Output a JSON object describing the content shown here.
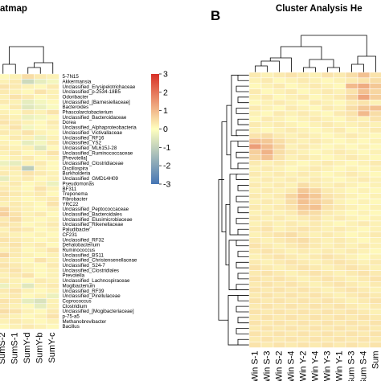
{
  "colors": {
    "high": "#d73027",
    "mid": "#ffffbf",
    "low": "#4575b4",
    "grid": "#ffffff"
  },
  "chart_data": [
    {
      "type": "heatmap",
      "panel": "",
      "title": "atmap",
      "rows": [
        "5-7N15",
        "Akkermansia",
        "Unclassified_Erysipelotrichaceae",
        "Unclassified_p-2534-18B5",
        "Odoribacter",
        "Unclassified_[Barnesiellaceae]",
        "Bacteroides",
        "Phascolarctobacterium",
        "Unclassified_Bacteroidaceae",
        "Dorea",
        "Unclassified_Alphaproteobacteria",
        "Unclassified_Victivallaceae",
        "Unclassified_RF16",
        "Unclassified_YS2",
        "Unclassified_ML615J-28",
        "Unclassified_Ruminococcaceae",
        "[Prevotella]",
        "Unclassified_Clostridiaceae",
        "Oscillospira",
        "Burkholderia",
        "Unclassified_GMD14H09",
        "Pseudomonas",
        "BF311",
        "Treponema",
        "Fibrobacter",
        "YRC22",
        "Unclassified_Peptococcaceae",
        "Unclassified_Bacteroidales",
        "Unclassified_Elusimicrobiaceae",
        "Unclassified_Rikenellaceae",
        "Paludibacter",
        "CF231",
        "Unclassified_RF32",
        "Dehalobacterium",
        "Ruminococcus",
        "Unclassified_BS11",
        "Unclassified_Christensenellaceae",
        "Unclassified_S24-7",
        "Unclassified_Clostridiales",
        "Prevotella",
        "Unclassified_Lachnospiraceae",
        "Mogibacterium",
        "Unclassified_RF39",
        "Unclassified_Pirellulaceae",
        "Coprococcus",
        "Clostridium",
        "Unclassified_[Mogibacteriaceae]",
        "p-75-a5",
        "Methanobrevibacter",
        "Bacillus"
      ],
      "columns": [
        "SumS-2",
        "SumS-1",
        "SumY-d",
        "SumY-b",
        "SumY-c"
      ],
      "values": [
        [
          0.1,
          0.2,
          0.5,
          0.3,
          0.2
        ],
        [
          0.2,
          0.3,
          -0.8,
          -0.4,
          -0.2
        ],
        [
          0.4,
          0.3,
          0.2,
          0.1,
          0.3
        ],
        [
          0.3,
          0.2,
          0.1,
          0.4,
          0.2
        ],
        [
          0.2,
          0.4,
          0.3,
          0.1,
          0.2
        ],
        [
          0.3,
          0.2,
          -0.4,
          -0.2,
          0.1
        ],
        [
          0.1,
          0.3,
          -0.5,
          -0.3,
          -0.1
        ],
        [
          0.2,
          0.1,
          0.3,
          0.2,
          0.4
        ],
        [
          0.3,
          0.2,
          -0.3,
          -0.2,
          0.1
        ],
        [
          0.4,
          0.3,
          0.2,
          0.1,
          0.3
        ],
        [
          0.2,
          0.4,
          -0.2,
          0.1,
          0.2
        ],
        [
          0.3,
          0.2,
          0.4,
          0.2,
          0.1
        ],
        [
          0.1,
          0.3,
          0.2,
          -0.3,
          0.2
        ],
        [
          0.2,
          0.1,
          -0.4,
          -0.2,
          0.3
        ],
        [
          0.3,
          0.2,
          0.2,
          -0.5,
          0.1
        ],
        [
          0.2,
          0.3,
          0.1,
          0.2,
          0.4
        ],
        [
          0.1,
          0.2,
          0.3,
          0.1,
          0.2
        ],
        [
          -0.3,
          -0.4,
          0.2,
          0.3,
          0.1
        ],
        [
          0.2,
          0.3,
          -1.1,
          0.2,
          0.1
        ],
        [
          0.3,
          0.2,
          0.4,
          0.3,
          0.2
        ],
        [
          -0.4,
          0.2,
          0.3,
          0.1,
          0.2
        ],
        [
          0.2,
          0.3,
          0.1,
          0.2,
          -0.3
        ],
        [
          0.3,
          0.2,
          0.1,
          0.4,
          0.2
        ],
        [
          0.4,
          0.3,
          0.2,
          0.3,
          0.1
        ],
        [
          0.3,
          0.2,
          0.1,
          0.2,
          0.3
        ],
        [
          0.2,
          0.3,
          0.2,
          0.1,
          0.4
        ],
        [
          0.6,
          0.3,
          0.2,
          0.1,
          0.2
        ],
        [
          0.7,
          0.4,
          0.2,
          0.3,
          0.1
        ],
        [
          0.3,
          0.5,
          0.2,
          0.1,
          0.2
        ],
        [
          0.4,
          0.3,
          0.1,
          0.2,
          0.3
        ],
        [
          0.2,
          0.4,
          0.3,
          0.1,
          0.2
        ],
        [
          0.3,
          0.2,
          0.1,
          0.2,
          0.1
        ],
        [
          0.4,
          0.3,
          0.2,
          0.1,
          0.2
        ],
        [
          0.3,
          0.4,
          0.2,
          0.3,
          0.1
        ],
        [
          0.2,
          0.3,
          0.1,
          0.2,
          0.4
        ],
        [
          0.6,
          0.3,
          0.2,
          0.1,
          0.2
        ],
        [
          0.3,
          0.2,
          0.1,
          0.4,
          0.2
        ],
        [
          0.4,
          0.3,
          0.2,
          0.1,
          0.3
        ],
        [
          0.3,
          0.4,
          0.2,
          0.1,
          0.2
        ],
        [
          0.2,
          0.3,
          0.4,
          0.1,
          0.2
        ],
        [
          0.3,
          0.2,
          0.1,
          0.3,
          0.2
        ],
        [
          -0.3,
          0.2,
          -0.5,
          0.2,
          0.3
        ],
        [
          0.3,
          0.4,
          0.2,
          0.1,
          0.2
        ],
        [
          0.2,
          0.3,
          0.1,
          0.2,
          -0.3
        ],
        [
          0.4,
          0.3,
          -0.4,
          -0.6,
          0.2
        ],
        [
          0.3,
          0.2,
          0.1,
          -0.4,
          0.2
        ],
        [
          0.5,
          0.4,
          0.2,
          0.1,
          0.3
        ],
        [
          0.3,
          0.2,
          0.1,
          0.2,
          0.4
        ],
        [
          0.2,
          0.3,
          0.2,
          0.1,
          0.2
        ],
        [
          0.1,
          0.2,
          0.3,
          0.2,
          0.1
        ]
      ],
      "legend": {
        "ticks": [
          3,
          2,
          1,
          0,
          -1,
          -2,
          -3
        ],
        "range": [
          -3,
          3
        ]
      }
    },
    {
      "type": "heatmap",
      "panel": "B",
      "title": "Cluster Analysis He",
      "columns": [
        "Win S-1",
        "Win S-3",
        "Win S-2",
        "Win S-4",
        "Win Y-2",
        "Win Y-4",
        "Win Y-3",
        "Win Y-1",
        "Sum S-3",
        "Sum S-4",
        "Sum"
      ],
      "values": [
        [
          0.3,
          0.2,
          0.3,
          0.4,
          0.3,
          0.2,
          0.4,
          0.3,
          0.5,
          0.9,
          0.4
        ],
        [
          0.2,
          0.3,
          0.1,
          0.2,
          0.3,
          0.2,
          0.1,
          0.2,
          0.3,
          0.4,
          0.5
        ],
        [
          0.1,
          0.2,
          0.3,
          0.1,
          0.2,
          0.3,
          0.2,
          0.1,
          1.0,
          1.2,
          0.8
        ],
        [
          0.3,
          0.1,
          0.2,
          0.3,
          0.1,
          0.2,
          0.3,
          0.2,
          0.4,
          0.9,
          0.6
        ],
        [
          0.2,
          0.3,
          0.1,
          0.2,
          0.3,
          0.1,
          0.2,
          0.3,
          0.6,
          1.3,
          0.7
        ],
        [
          0.1,
          0.2,
          0.3,
          0.2,
          0.1,
          0.3,
          0.2,
          0.1,
          0.3,
          0.4,
          0.2
        ],
        [
          0.3,
          0.2,
          0.1,
          0.3,
          0.2,
          0.1,
          0.3,
          0.2,
          0.5,
          0.8,
          0.9
        ],
        [
          0.2,
          0.1,
          0.3,
          0.2,
          0.3,
          0.2,
          0.1,
          0.3,
          0.4,
          1.0,
          0.5
        ],
        [
          0.1,
          0.3,
          0.2,
          0.1,
          0.2,
          0.3,
          0.2,
          0.1,
          0.3,
          0.2,
          0.4
        ],
        [
          0.3,
          0.2,
          0.3,
          0.2,
          0.1,
          0.2,
          0.3,
          0.2,
          0.2,
          0.3,
          0.2
        ],
        [
          0.2,
          0.1,
          0.2,
          0.3,
          0.2,
          0.1,
          0.2,
          0.3,
          0.1,
          0.2,
          0.3
        ],
        [
          0.4,
          0.5,
          0.3,
          0.2,
          0.3,
          0.2,
          0.1,
          0.2,
          0.3,
          0.2,
          0.1
        ],
        [
          0.9,
          0.8,
          0.5,
          0.3,
          0.2,
          0.3,
          0.2,
          0.1,
          0.2,
          0.1,
          0.2
        ],
        [
          1.4,
          1.0,
          0.6,
          0.2,
          0.3,
          0.2,
          0.1,
          0.2,
          0.1,
          0.2,
          0.1
        ],
        [
          0.7,
          1.1,
          0.5,
          0.3,
          0.2,
          0.1,
          0.2,
          0.3,
          0.2,
          0.1,
          0.2
        ],
        [
          0.6,
          0.9,
          0.4,
          0.2,
          0.3,
          0.2,
          0.1,
          0.2,
          0.3,
          0.2,
          0.1
        ],
        [
          0.3,
          0.2,
          0.3,
          0.2,
          0.1,
          0.2,
          0.3,
          0.2,
          0.1,
          0.2,
          0.3
        ],
        [
          0.2,
          0.3,
          0.2,
          0.1,
          0.2,
          0.3,
          0.2,
          0.1,
          0.2,
          0.1,
          0.2
        ],
        [
          0.3,
          0.2,
          0.3,
          0.2,
          0.3,
          0.2,
          0.1,
          0.2,
          0.3,
          0.2,
          0.1
        ],
        [
          0.2,
          0.3,
          0.2,
          0.3,
          0.2,
          0.3,
          0.2,
          0.1,
          0.2,
          0.3,
          0.2
        ],
        [
          0.3,
          0.2,
          0.3,
          0.2,
          0.5,
          0.3,
          0.2,
          0.3,
          0.2,
          0.1,
          0.2
        ],
        [
          0.2,
          0.3,
          0.2,
          0.3,
          0.8,
          0.6,
          0.3,
          0.2,
          0.1,
          0.2,
          0.1
        ],
        [
          0.3,
          0.2,
          0.3,
          0.6,
          1.0,
          0.8,
          0.4,
          0.3,
          0.2,
          0.1,
          0.2
        ],
        [
          0.2,
          0.3,
          0.2,
          0.5,
          0.9,
          0.7,
          0.5,
          0.2,
          0.1,
          0.2,
          0.1
        ],
        [
          0.3,
          0.2,
          0.3,
          0.4,
          0.8,
          0.9,
          0.4,
          0.3,
          0.2,
          0.1,
          0.2
        ],
        [
          0.2,
          0.3,
          0.2,
          0.3,
          0.6,
          0.5,
          0.3,
          0.2,
          0.1,
          0.2,
          0.1
        ],
        [
          0.3,
          0.2,
          0.3,
          0.2,
          0.3,
          0.4,
          0.2,
          0.3,
          0.2,
          0.1,
          0.2
        ],
        [
          0.2,
          0.3,
          0.2,
          0.3,
          0.2,
          0.3,
          0.2,
          0.1,
          0.2,
          0.3,
          0.2
        ],
        [
          0.3,
          0.4,
          0.2,
          0.3,
          0.4,
          0.3,
          0.2,
          0.3,
          0.2,
          0.1,
          0.2
        ],
        [
          0.2,
          0.3,
          0.4,
          0.5,
          0.3,
          0.2,
          0.3,
          0.2,
          0.1,
          0.2,
          0.3
        ],
        [
          0.3,
          0.2,
          0.3,
          0.4,
          0.5,
          0.3,
          0.2,
          0.3,
          0.2,
          0.1,
          0.2
        ],
        [
          0.4,
          0.3,
          0.2,
          0.3,
          0.4,
          0.3,
          0.2,
          0.3,
          0.2,
          0.3,
          0.2
        ],
        [
          0.3,
          0.4,
          0.3,
          0.2,
          0.3,
          0.2,
          0.3,
          0.2,
          0.3,
          0.2,
          0.1
        ],
        [
          0.2,
          0.3,
          0.4,
          0.3,
          0.2,
          0.3,
          0.4,
          0.3,
          0.2,
          0.1,
          0.2
        ],
        [
          0.3,
          0.2,
          0.3,
          0.4,
          0.3,
          0.2,
          0.3,
          0.4,
          0.3,
          0.2,
          0.3
        ],
        [
          0.4,
          0.3,
          0.2,
          0.3,
          0.4,
          0.3,
          0.2,
          0.3,
          0.4,
          0.3,
          0.2
        ],
        [
          0.3,
          0.4,
          0.3,
          0.2,
          0.3,
          0.4,
          0.3,
          0.2,
          0.3,
          0.4,
          0.3
        ],
        [
          0.4,
          0.3,
          0.4,
          0.3,
          0.2,
          0.3,
          0.4,
          0.3,
          0.2,
          0.3,
          0.4
        ],
        [
          0.3,
          0.4,
          0.3,
          0.4,
          0.3,
          0.2,
          0.3,
          0.4,
          0.3,
          0.2,
          0.3
        ],
        [
          0.4,
          0.3,
          0.4,
          0.3,
          0.4,
          0.3,
          0.2,
          0.3,
          0.4,
          0.3,
          0.2
        ],
        [
          0.3,
          0.4,
          0.3,
          0.4,
          0.3,
          0.4,
          0.3,
          0.2,
          0.3,
          0.4,
          0.3
        ],
        [
          0.4,
          0.3,
          0.4,
          0.3,
          0.4,
          0.3,
          0.4,
          0.3,
          0.2,
          0.3,
          0.4
        ],
        [
          0.3,
          0.4,
          0.3,
          0.4,
          0.3,
          0.4,
          0.3,
          0.4,
          0.3,
          0.2,
          0.3
        ],
        [
          0.4,
          0.3,
          0.4,
          0.3,
          0.4,
          0.3,
          0.4,
          0.3,
          0.4,
          0.3,
          0.2
        ],
        [
          0.3,
          0.4,
          0.3,
          0.4,
          0.3,
          0.4,
          0.3,
          0.4,
          0.3,
          0.4,
          0.3
        ],
        [
          0.4,
          0.3,
          0.4,
          0.3,
          0.4,
          0.3,
          0.4,
          0.3,
          0.4,
          0.3,
          0.4
        ],
        [
          0.3,
          0.4,
          0.3,
          0.4,
          0.3,
          0.4,
          0.3,
          0.4,
          0.3,
          0.4,
          0.3
        ],
        [
          0.4,
          0.3,
          0.4,
          0.3,
          0.4,
          0.3,
          0.4,
          0.3,
          0.4,
          0.3,
          0.4
        ],
        [
          0.3,
          0.4,
          0.3,
          0.4,
          0.3,
          0.4,
          0.3,
          0.4,
          0.3,
          0.4,
          0.3
        ],
        [
          0.4,
          0.3,
          0.4,
          0.3,
          0.4,
          0.3,
          0.4,
          0.3,
          0.4,
          0.3,
          0.4
        ]
      ]
    }
  ]
}
